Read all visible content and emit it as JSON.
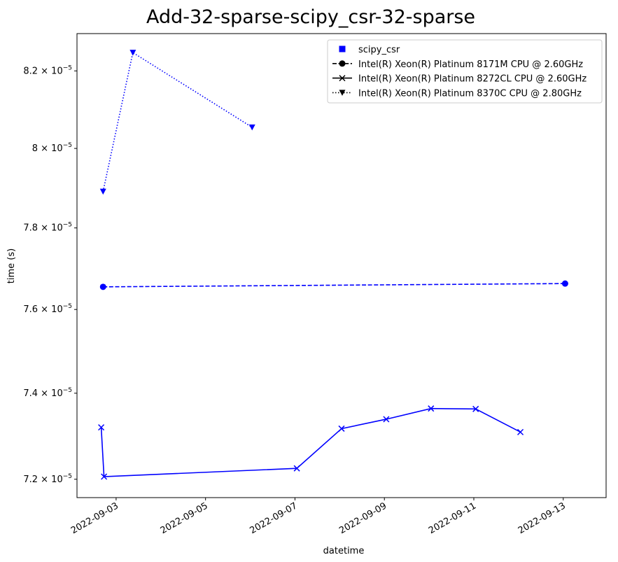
{
  "chart_data": {
    "type": "line",
    "title": "Add-32-sparse-scipy_csr-32-sparse",
    "xlabel": "datetime",
    "ylabel": "time (s)",
    "x_range": [
      "2022-09-02T03:00",
      "2022-09-13T23:00"
    ],
    "ylim": [
      7.158e-05,
      8.298e-05
    ],
    "x_ticks": [
      "2022-09-03",
      "2022-09-05",
      "2022-09-07",
      "2022-09-09",
      "2022-09-11",
      "2022-09-13"
    ],
    "y_ticks": [
      {
        "value": 7.2e-05,
        "mantissa": "7.2",
        "exponent": "−5"
      },
      {
        "value": 7.4e-05,
        "mantissa": "7.4",
        "exponent": "−5"
      },
      {
        "value": 7.6e-05,
        "mantissa": "7.6",
        "exponent": "−5"
      },
      {
        "value": 7.8e-05,
        "mantissa": "7.8",
        "exponent": "−5"
      },
      {
        "value": 8e-05,
        "mantissa": "8",
        "exponent": "−5"
      },
      {
        "value": 8.2e-05,
        "mantissa": "8.2",
        "exponent": "−5"
      }
    ],
    "y_tick_base": "× 10",
    "color": "#0000ff",
    "grid": false,
    "legend_position": "top-right",
    "legend": [
      {
        "label": "scipy_csr",
        "marker": "square",
        "linestyle": "none"
      },
      {
        "label": "Intel(R) Xeon(R) Platinum 8171M CPU @ 2.60GHz",
        "marker": "circle",
        "linestyle": "dashed"
      },
      {
        "label": "Intel(R) Xeon(R) Platinum 8272CL CPU @ 2.60GHz",
        "marker": "x",
        "linestyle": "solid"
      },
      {
        "label": "Intel(R) Xeon(R) Platinum 8370C CPU @ 2.80GHz",
        "marker": "triangle-down",
        "linestyle": "dotted"
      }
    ],
    "series": [
      {
        "name": "Intel(R) Xeon(R) Platinum 8171M CPU @ 2.60GHz",
        "marker": "circle",
        "linestyle": "dashed",
        "x": [
          "2022-09-02T17:00",
          "2022-09-13T01:00"
        ],
        "y": [
          7.655e-05,
          7.663e-05
        ]
      },
      {
        "name": "Intel(R) Xeon(R) Platinum 8272CL CPU @ 2.60GHz",
        "marker": "x",
        "linestyle": "solid",
        "x": [
          "2022-09-02T16:00",
          "2022-09-02T17:30",
          "2022-09-07T01:00",
          "2022-09-08T01:00",
          "2022-09-09T01:00",
          "2022-09-10T01:00",
          "2022-09-11T01:00",
          "2022-09-12T01:00"
        ],
        "y": [
          7.32e-05,
          7.206e-05,
          7.225e-05,
          7.317e-05,
          7.339e-05,
          7.364e-05,
          7.363e-05,
          7.309e-05
        ]
      },
      {
        "name": "Intel(R) Xeon(R) Platinum 8370C CPU @ 2.80GHz",
        "marker": "triangle-down",
        "linestyle": "dotted",
        "x": [
          "2022-09-02T17:00",
          "2022-09-03T09:00",
          "2022-09-06T01:00"
        ],
        "y": [
          7.891e-05,
          8.248e-05,
          8.054e-05
        ]
      }
    ]
  }
}
